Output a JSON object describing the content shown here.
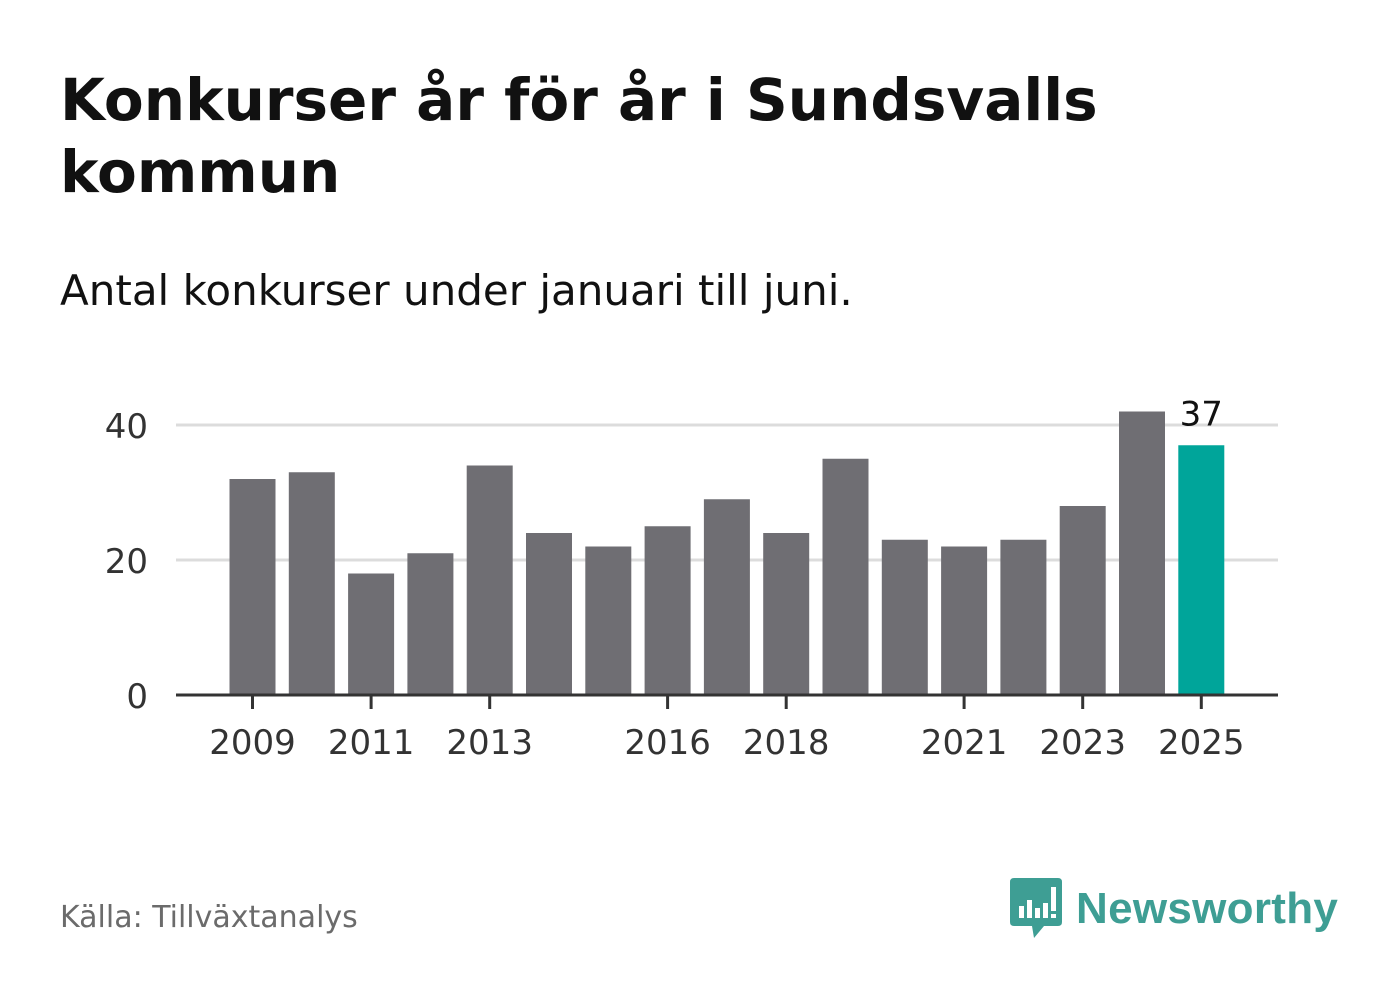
{
  "title": "Konkurser år för år i Sundsvalls kommun",
  "subtitle": "Antal konkurser under januari till juni.",
  "source": "Källa: Tillväxtanalys",
  "brand": {
    "name": "Newsworthy",
    "icon": "newsworthy-logo-icon",
    "color": "#3e9e94"
  },
  "chart_data": {
    "type": "bar",
    "categories": [
      "2009",
      "2010",
      "2011",
      "2012",
      "2013",
      "2014",
      "2015",
      "2016",
      "2017",
      "2018",
      "2019",
      "2020",
      "2021",
      "2022",
      "2023",
      "2024",
      "2025"
    ],
    "values": [
      32,
      33,
      18,
      21,
      34,
      24,
      22,
      25,
      29,
      24,
      35,
      23,
      22,
      23,
      28,
      42,
      37
    ],
    "tick_labels_x": [
      "2009",
      "2011",
      "2013",
      "2016",
      "2018",
      "2021",
      "2023",
      "2025"
    ],
    "tick_labels_y": [
      "0",
      "20",
      "40"
    ],
    "y_ticks": [
      0,
      20,
      40
    ],
    "ylim": [
      0,
      42
    ],
    "highlight": {
      "category": "2025",
      "label": "37"
    },
    "colors": {
      "bar": "#6f6e73",
      "highlight": "#00a59a",
      "grid": "#dcdcdc",
      "axis": "#333333"
    },
    "grid": true,
    "title": "",
    "xlabel": "",
    "ylabel": ""
  }
}
